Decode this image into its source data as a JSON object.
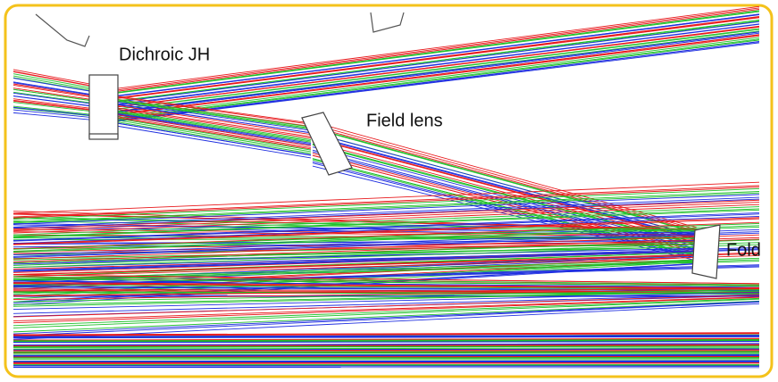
{
  "nodes": [
    {
      "label": "Dichroic JH"
    },
    {
      "label": "Field lens"
    },
    {
      "label": "Fold"
    }
  ]
}
